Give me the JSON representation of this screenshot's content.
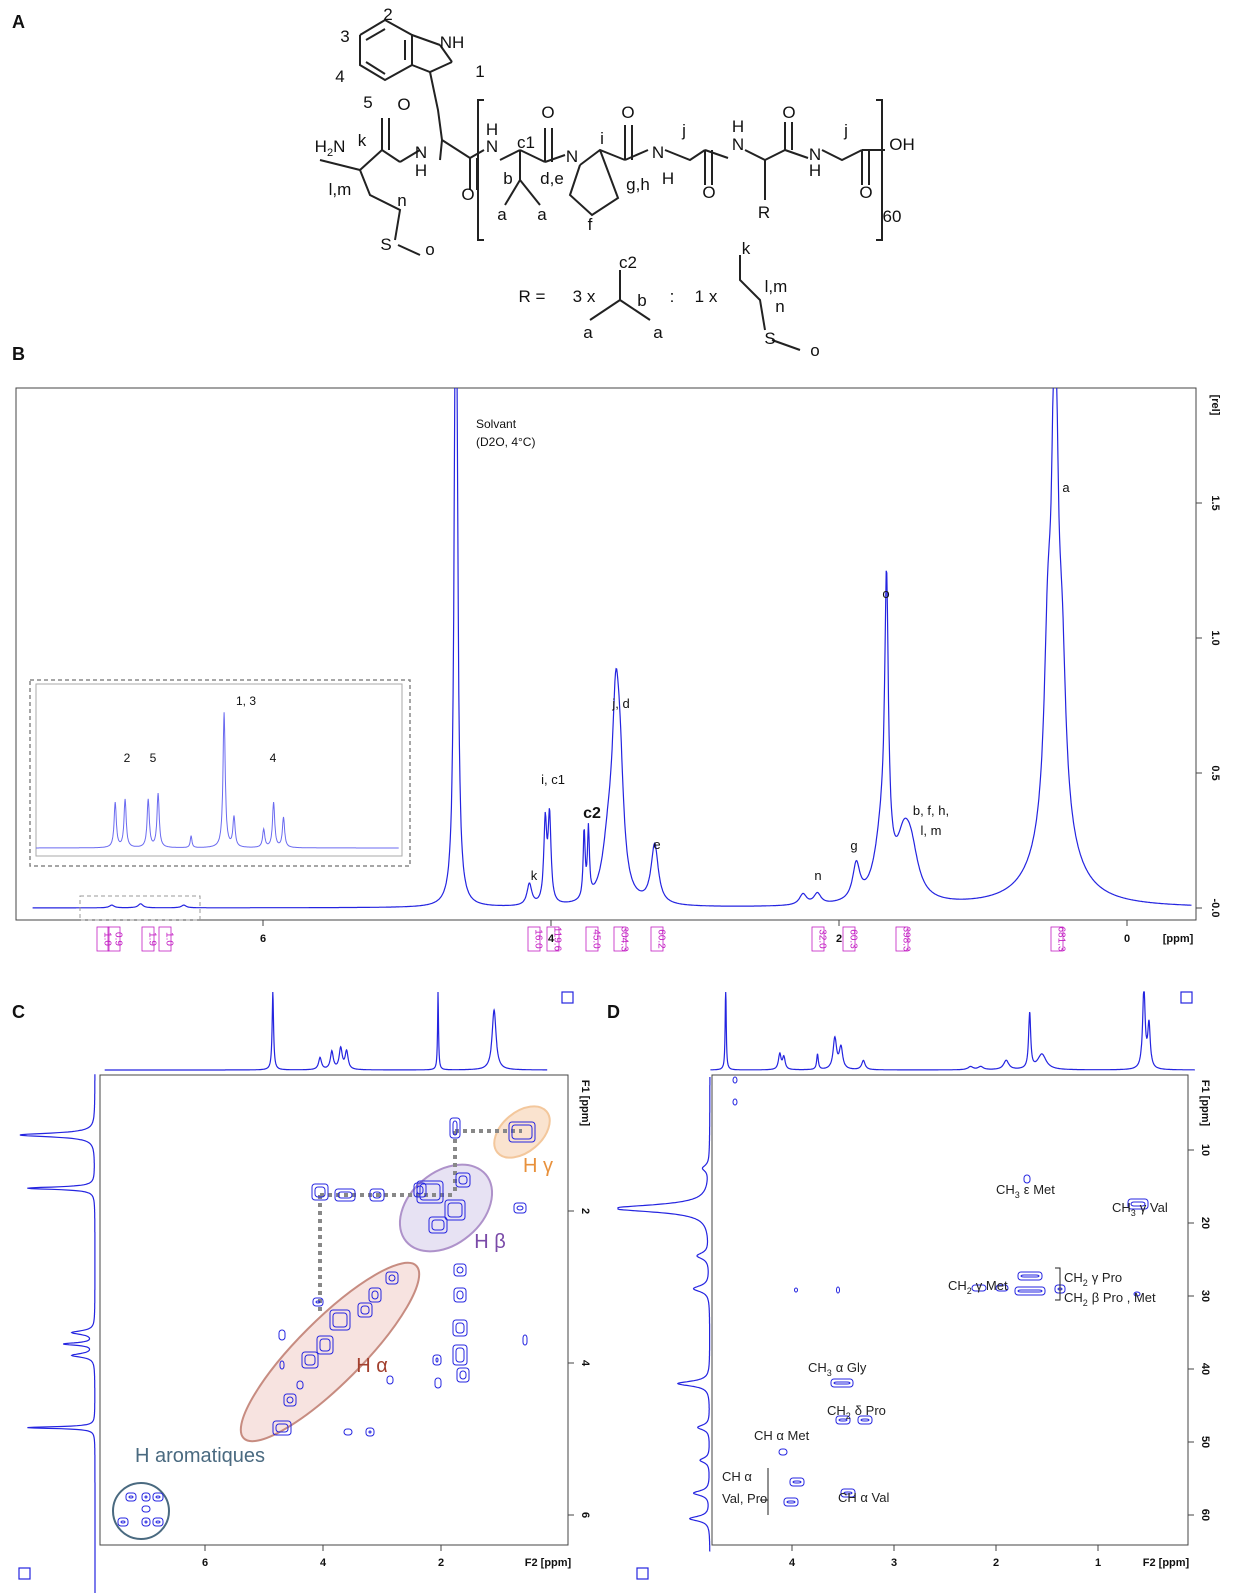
{
  "panel_a": {
    "letter": "A",
    "labels": [
      "2",
      "3",
      "4",
      "5",
      "NH",
      "1",
      "k",
      "O",
      "N",
      "H",
      "O",
      "H",
      "N",
      "c1",
      "O",
      "b",
      "d,e",
      "a",
      "a",
      "N",
      "i",
      "O",
      "f",
      "g,h",
      "N",
      "H",
      "j",
      "O",
      "H",
      "N",
      "R",
      "O",
      "N",
      "H",
      "j",
      "O",
      "OH",
      "60",
      "l,m",
      "n",
      "S",
      "o",
      "R =",
      "3 x",
      "c2",
      "b",
      ":",
      "1 x",
      "a",
      "a",
      "k",
      "l,m",
      "n",
      "S",
      "o"
    ],
    "h2n": {
      "a": "H",
      "sub": "2",
      "b": "N"
    }
  },
  "panel_b": {
    "letter": "B",
    "x_ticks": [
      6,
      4,
      2,
      0
    ],
    "x_unit": "[ppm]",
    "y_ticks": [
      {
        "value": 0,
        "label": "-0.0"
      },
      {
        "value": 0.5,
        "label": "0.5"
      },
      {
        "value": 1.0,
        "label": "1.0"
      },
      {
        "value": 1.5,
        "label": "1.5"
      }
    ],
    "y_unit": "[rel]",
    "solvent": [
      "Solvant",
      "(D2O, 4°C)"
    ],
    "peak_labels": [
      "a",
      "o",
      "b, f, h,",
      "l, m",
      "g",
      "n",
      "e",
      "j, d",
      "c2",
      "i, c1",
      "k"
    ],
    "integrals": [
      "1.0",
      "0.9",
      "1.9",
      "1.0",
      "16.0",
      "119.6",
      "45.0",
      "304.3",
      "60.2",
      "32.0",
      "60.3",
      "398.3",
      "681.3"
    ],
    "inset": {
      "peak_labels": [
        "2",
        "5",
        "1, 3",
        "4"
      ]
    }
  },
  "panel_c": {
    "letter": "C",
    "x_ticks": [
      6,
      4,
      2
    ],
    "x_unit": "F2 [ppm]",
    "y_ticks": [
      2,
      4,
      6
    ],
    "y_unit": "F1 [ppm]",
    "regions": [
      "H γ",
      "H β",
      "H α",
      "H aromatiques"
    ]
  },
  "panel_d": {
    "letter": "D",
    "x_ticks": [
      4,
      3,
      2,
      1
    ],
    "x_unit": "F2 [ppm]",
    "y_ticks": [
      10,
      20,
      30,
      40,
      50,
      60
    ],
    "y_unit": "F1 [ppm]",
    "labels": [
      {
        "a": "CH",
        "sub": "3",
        "b": "ε Met"
      },
      {
        "a": "CH",
        "sub": "3",
        "b": "γ Val"
      },
      {
        "a": "CH",
        "sub": "2",
        "b": "γ Met"
      },
      {
        "a": "CH",
        "sub": "2",
        "b": "γ Pro"
      },
      {
        "a": "CH",
        "sub": "2",
        "b": "β Pro , Met"
      },
      {
        "a": "CH",
        "sub": "3",
        "b": "α Gly"
      },
      {
        "a": "CH",
        "sub": "2",
        "b": "δ Pro"
      },
      {
        "a": "CH α Met"
      },
      {
        "a": "CH α"
      },
      {
        "a": "Val, Pro"
      },
      {
        "a": "CH α Val"
      }
    ]
  }
}
